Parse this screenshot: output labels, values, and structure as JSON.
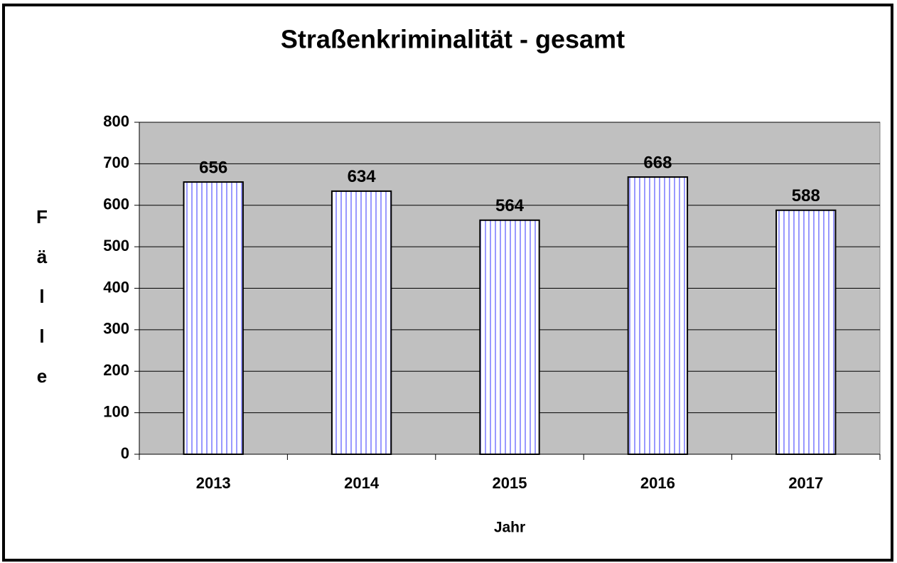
{
  "chart_data": {
    "type": "bar",
    "title": "Straßenkriminalität - gesamt",
    "x_label": "Jahr",
    "y_label": "Fälle",
    "categories": [
      "2013",
      "2014",
      "2015",
      "2016",
      "2017"
    ],
    "values": [
      656,
      634,
      564,
      668,
      588
    ],
    "color": "#9999ff",
    "ylim": [
      0,
      800
    ],
    "yticks": [
      0,
      100,
      200,
      300,
      400,
      500,
      600,
      700,
      800
    ],
    "grid": true
  }
}
